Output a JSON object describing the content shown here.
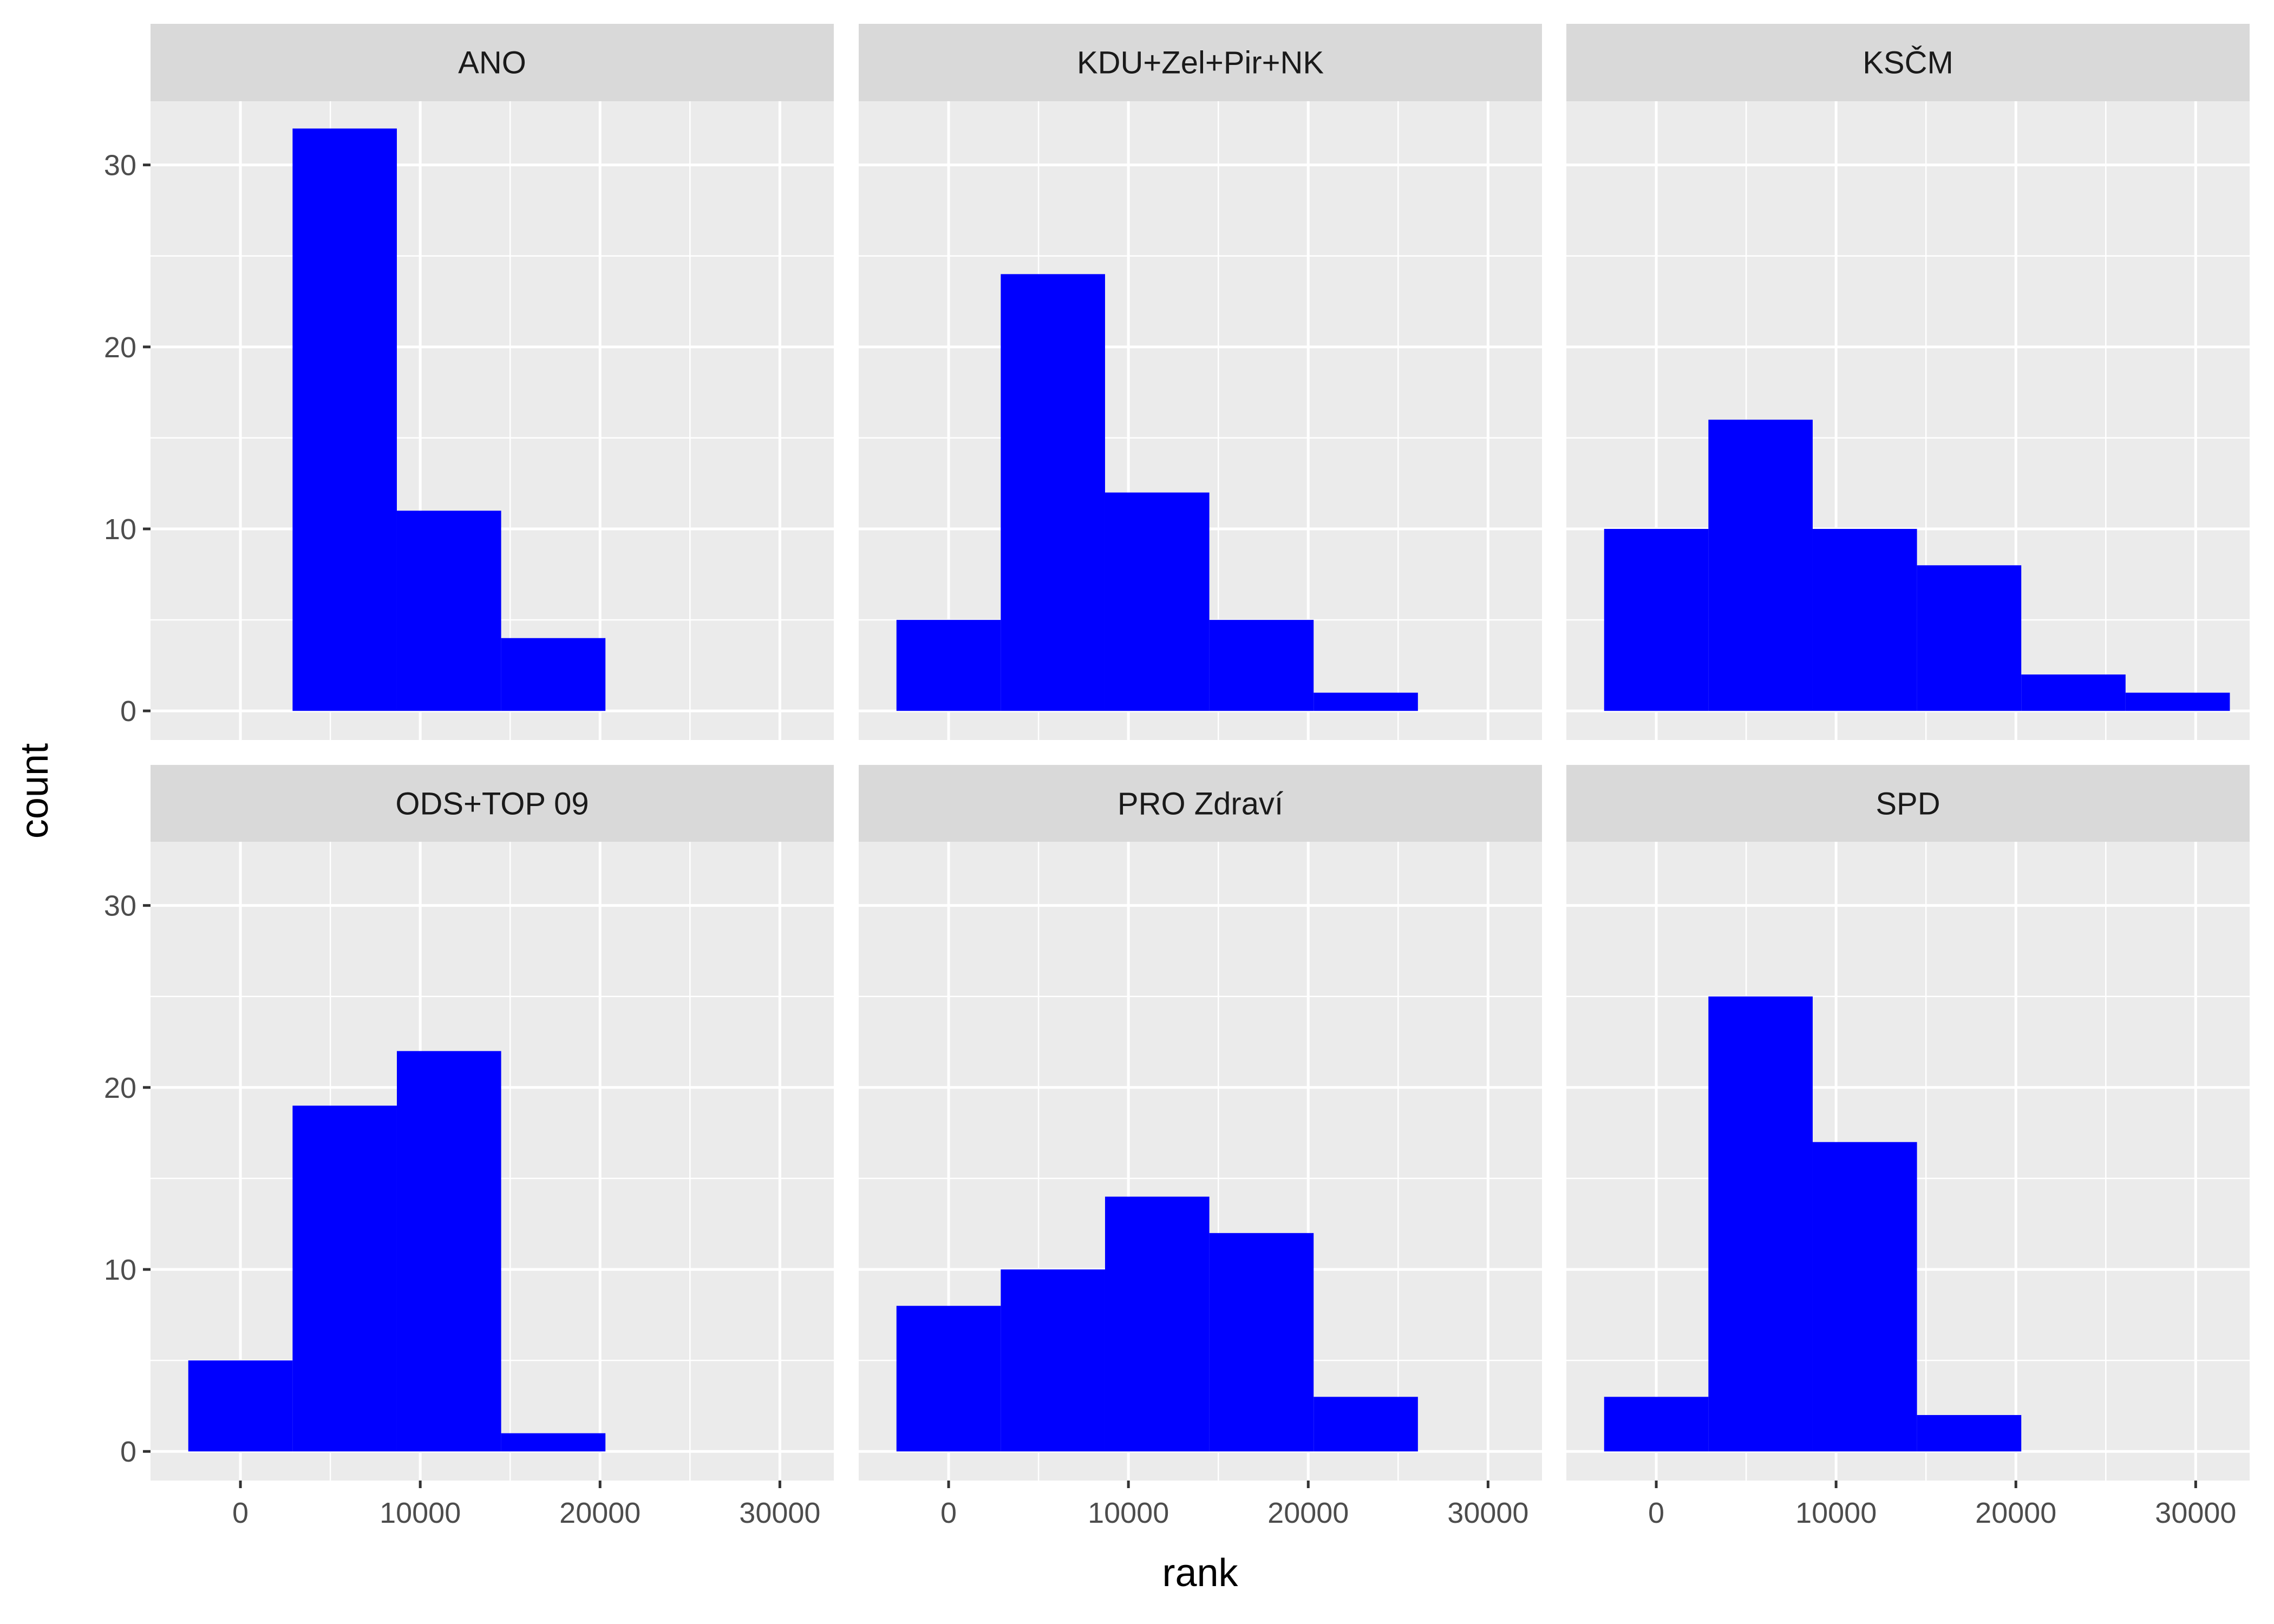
{
  "chart_data": {
    "type": "bar",
    "xlabel": "rank",
    "ylabel": "count",
    "xlim": [
      -5000,
      33000
    ],
    "ylim": [
      -1.6,
      33.5
    ],
    "x_ticks": [
      0,
      10000,
      20000,
      30000
    ],
    "x_tick_labels": [
      "0",
      "10000",
      "20000",
      "30000"
    ],
    "y_ticks": [
      0,
      10,
      20,
      30
    ],
    "y_tick_labels": [
      "0",
      "10",
      "20",
      "30"
    ],
    "bin_edges": [
      -2900,
      2900,
      8700,
      14500,
      20300,
      26100,
      31900
    ],
    "grid": true,
    "bar_color": "#0000FF",
    "panels": [
      {
        "label": "ANO",
        "values": [
          0,
          32,
          11,
          4,
          0,
          0
        ]
      },
      {
        "label": "KDU+Zel+Pir+NK",
        "values": [
          5,
          24,
          12,
          5,
          1,
          0
        ]
      },
      {
        "label": "KSČM",
        "values": [
          10,
          16,
          10,
          8,
          2,
          1
        ]
      },
      {
        "label": "ODS+TOP 09",
        "values": [
          5,
          19,
          22,
          1,
          0,
          0
        ]
      },
      {
        "label": "PRO Zdraví",
        "values": [
          8,
          10,
          14,
          12,
          3,
          0
        ]
      },
      {
        "label": "SPD",
        "values": [
          3,
          25,
          17,
          2,
          0,
          0
        ]
      }
    ]
  }
}
